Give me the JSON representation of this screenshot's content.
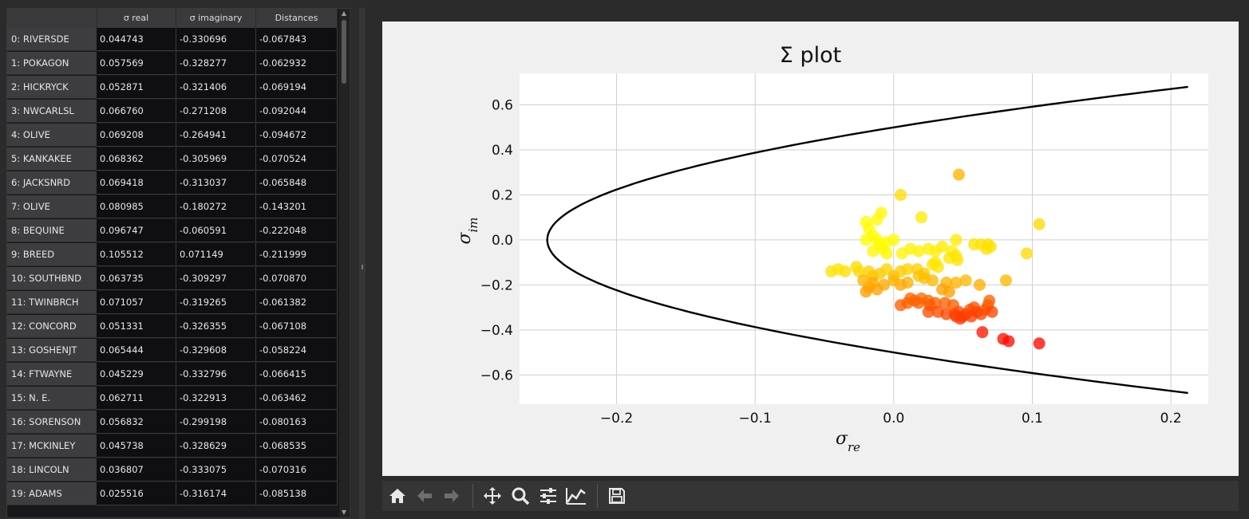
{
  "table": {
    "columns": [
      "σ real",
      "σ imaginary",
      "Distances"
    ],
    "rows": [
      {
        "name": "0: RIVERSDE",
        "real": "0.044743",
        "imag": "-0.330696",
        "dist": "-0.067843"
      },
      {
        "name": "1: POKAGON",
        "real": "0.057569",
        "imag": "-0.328277",
        "dist": "-0.062932"
      },
      {
        "name": "2: HICKRYCK",
        "real": "0.052871",
        "imag": "-0.321406",
        "dist": "-0.069194"
      },
      {
        "name": "3: NWCARLSL",
        "real": "0.066760",
        "imag": "-0.271208",
        "dist": "-0.092044"
      },
      {
        "name": "4: OLIVE",
        "real": "0.069208",
        "imag": "-0.264941",
        "dist": "-0.094672"
      },
      {
        "name": "5: KANKAKEE",
        "real": "0.068362",
        "imag": "-0.305969",
        "dist": "-0.070524"
      },
      {
        "name": "6: JACKSNRD",
        "real": "0.069418",
        "imag": "-0.313037",
        "dist": "-0.065848"
      },
      {
        "name": "7: OLIVE",
        "real": "0.080985",
        "imag": "-0.180272",
        "dist": "-0.143201"
      },
      {
        "name": "8: BEQUINE",
        "real": "0.096747",
        "imag": "-0.060591",
        "dist": "-0.222048"
      },
      {
        "name": "9: BREED",
        "real": "0.105512",
        "imag": "0.071149",
        "dist": "-0.211999"
      },
      {
        "name": "10: SOUTHBND",
        "real": "0.063735",
        "imag": "-0.309297",
        "dist": "-0.070870"
      },
      {
        "name": "11: TWINBRCH",
        "real": "0.071057",
        "imag": "-0.319265",
        "dist": "-0.061382"
      },
      {
        "name": "12: CONCORD",
        "real": "0.051331",
        "imag": "-0.326355",
        "dist": "-0.067108"
      },
      {
        "name": "13: GOSHENJT",
        "real": "0.065444",
        "imag": "-0.329608",
        "dist": "-0.058224"
      },
      {
        "name": "14: FTWAYNE",
        "real": "0.045229",
        "imag": "-0.332796",
        "dist": "-0.066415"
      },
      {
        "name": "15: N. E.",
        "real": "0.062711",
        "imag": "-0.322913",
        "dist": "-0.063462"
      },
      {
        "name": "16: SORENSON",
        "real": "0.056832",
        "imag": "-0.299198",
        "dist": "-0.080163"
      },
      {
        "name": "17: MCKINLEY",
        "real": "0.045738",
        "imag": "-0.328629",
        "dist": "-0.068535"
      },
      {
        "name": "18: LINCOLN",
        "real": "0.036807",
        "imag": "-0.333075",
        "dist": "-0.070316"
      },
      {
        "name": "19: ADAMS",
        "real": "0.025516",
        "imag": "-0.316174",
        "dist": "-0.085138"
      }
    ]
  },
  "toolbar": {
    "buttons": [
      "home-icon",
      "back-icon",
      "forward-icon",
      "pan-icon",
      "zoom-icon",
      "subplots-icon",
      "customize-icon",
      "save-icon"
    ]
  },
  "chart_data": {
    "type": "scatter",
    "title": "Σ plot",
    "xlabel": "σ_re",
    "ylabel": "σ_im",
    "xlim": [
      -0.27,
      0.227
    ],
    "ylim": [
      -0.73,
      0.74
    ],
    "xticks": [
      -0.2,
      -0.1,
      0.0,
      0.1,
      0.2
    ],
    "xtick_labels": [
      "−0.2",
      "−0.1",
      "0.0",
      "0.1",
      "0.2"
    ],
    "yticks": [
      0.6,
      0.4,
      0.2,
      0.0,
      -0.2,
      -0.4,
      -0.6
    ],
    "ytick_labels": [
      "0.6",
      "0.4",
      "0.2",
      "0.0",
      "−0.2",
      "−0.4",
      "−0.6"
    ],
    "grid": true,
    "boundary_curve": {
      "description": "parabola x = y^2 - 0.25",
      "color": "#000000"
    },
    "colormap": "autumn (red→yellow)",
    "points": [
      [
        0.047,
        0.29,
        0.7
      ],
      [
        0.005,
        0.2,
        0.87
      ],
      [
        0.02,
        0.1,
        0.92
      ],
      [
        0.105,
        0.07,
        0.85
      ],
      [
        -0.009,
        0.12,
        0.97
      ],
      [
        -0.012,
        0.09,
        0.98
      ],
      [
        -0.02,
        0.08,
        0.99
      ],
      [
        -0.018,
        0.05,
        0.99
      ],
      [
        -0.015,
        0.02,
        0.99
      ],
      [
        -0.012,
        0.0,
        0.99
      ],
      [
        -0.02,
        0.0,
        0.99
      ],
      [
        -0.01,
        -0.02,
        0.99
      ],
      [
        -0.005,
        -0.01,
        0.99
      ],
      [
        0.0,
        0.0,
        0.98
      ],
      [
        -0.008,
        -0.04,
        0.98
      ],
      [
        -0.015,
        -0.05,
        0.97
      ],
      [
        -0.005,
        -0.06,
        0.97
      ],
      [
        0.006,
        -0.06,
        0.96
      ],
      [
        0.012,
        -0.04,
        0.95
      ],
      [
        0.018,
        -0.05,
        0.95
      ],
      [
        0.025,
        -0.04,
        0.94
      ],
      [
        0.03,
        -0.05,
        0.94
      ],
      [
        0.042,
        -0.05,
        0.93
      ],
      [
        0.045,
        0.0,
        0.92
      ],
      [
        0.035,
        -0.03,
        0.92
      ],
      [
        0.058,
        -0.02,
        0.9
      ],
      [
        0.063,
        -0.02,
        0.89
      ],
      [
        0.067,
        -0.04,
        0.88
      ],
      [
        0.068,
        -0.02,
        0.88
      ],
      [
        0.07,
        -0.03,
        0.88
      ],
      [
        0.096,
        -0.06,
        0.86
      ],
      [
        0.03,
        -0.1,
        0.91
      ],
      [
        0.028,
        -0.11,
        0.9
      ],
      [
        0.032,
        -0.12,
        0.9
      ],
      [
        0.046,
        -0.09,
        0.89
      ],
      [
        0.04,
        -0.08,
        0.9
      ],
      [
        0.045,
        -0.07,
        0.9
      ],
      [
        -0.025,
        -0.14,
        0.86
      ],
      [
        -0.035,
        -0.14,
        0.88
      ],
      [
        -0.045,
        -0.14,
        0.89
      ],
      [
        -0.04,
        -0.13,
        0.89
      ],
      [
        -0.027,
        -0.12,
        0.86
      ],
      [
        -0.018,
        -0.14,
        0.82
      ],
      [
        -0.015,
        -0.16,
        0.78
      ],
      [
        -0.01,
        -0.15,
        0.78
      ],
      [
        -0.005,
        -0.13,
        0.83
      ],
      [
        0.0,
        -0.16,
        0.76
      ],
      [
        0.005,
        -0.14,
        0.79
      ],
      [
        0.01,
        -0.13,
        0.82
      ],
      [
        0.017,
        -0.13,
        0.82
      ],
      [
        0.022,
        -0.15,
        0.79
      ],
      [
        0.028,
        -0.18,
        0.72
      ],
      [
        0.022,
        -0.17,
        0.74
      ],
      [
        0.018,
        -0.16,
        0.76
      ],
      [
        0.01,
        -0.19,
        0.68
      ],
      [
        0.005,
        -0.2,
        0.66
      ],
      [
        0.0,
        -0.18,
        0.7
      ],
      [
        -0.007,
        -0.2,
        0.66
      ],
      [
        -0.015,
        -0.19,
        0.67
      ],
      [
        -0.018,
        -0.21,
        0.65
      ],
      [
        -0.02,
        -0.23,
        0.62
      ],
      [
        -0.022,
        -0.18,
        0.7
      ],
      [
        -0.012,
        -0.22,
        0.64
      ],
      [
        0.038,
        -0.19,
        0.7
      ],
      [
        0.045,
        -0.19,
        0.7
      ],
      [
        0.052,
        -0.18,
        0.72
      ],
      [
        0.062,
        -0.2,
        0.68
      ],
      [
        0.081,
        -0.18,
        0.72
      ],
      [
        0.04,
        -0.23,
        0.62
      ],
      [
        0.035,
        -0.22,
        0.63
      ],
      [
        0.015,
        -0.27,
        0.4
      ],
      [
        0.01,
        -0.28,
        0.38
      ],
      [
        0.005,
        -0.29,
        0.36
      ],
      [
        0.02,
        -0.26,
        0.42
      ],
      [
        0.025,
        -0.27,
        0.4
      ],
      [
        0.03,
        -0.28,
        0.38
      ],
      [
        0.026,
        -0.29,
        0.36
      ],
      [
        0.018,
        -0.28,
        0.38
      ],
      [
        0.012,
        -0.26,
        0.4
      ],
      [
        0.037,
        -0.28,
        0.38
      ],
      [
        0.043,
        -0.29,
        0.36
      ],
      [
        0.032,
        -0.32,
        0.3
      ],
      [
        0.038,
        -0.33,
        0.28
      ],
      [
        0.044,
        -0.33,
        0.28
      ],
      [
        0.047,
        -0.32,
        0.3
      ],
      [
        0.05,
        -0.34,
        0.24
      ],
      [
        0.052,
        -0.33,
        0.27
      ],
      [
        0.055,
        -0.31,
        0.3
      ],
      [
        0.058,
        -0.3,
        0.32
      ],
      [
        0.06,
        -0.32,
        0.28
      ],
      [
        0.063,
        -0.33,
        0.26
      ],
      [
        0.066,
        -0.31,
        0.3
      ],
      [
        0.068,
        -0.29,
        0.35
      ],
      [
        0.069,
        -0.27,
        0.38
      ],
      [
        0.071,
        -0.32,
        0.28
      ],
      [
        0.064,
        -0.41,
        0.1
      ],
      [
        0.079,
        -0.44,
        0.06
      ],
      [
        0.083,
        -0.45,
        0.05
      ],
      [
        0.105,
        -0.46,
        0.04
      ],
      [
        0.025,
        -0.32,
        0.3
      ],
      [
        0.048,
        -0.35,
        0.22
      ],
      [
        0.045,
        -0.34,
        0.24
      ],
      [
        0.056,
        -0.34,
        0.24
      ]
    ]
  }
}
